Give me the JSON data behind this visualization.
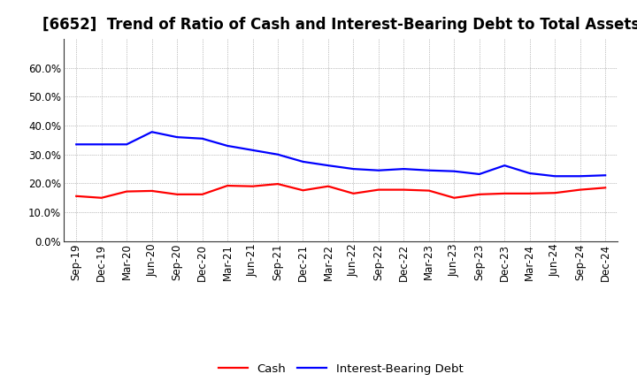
{
  "title": "[6652]  Trend of Ratio of Cash and Interest-Bearing Debt to Total Assets",
  "x_labels": [
    "Sep-19",
    "Dec-19",
    "Mar-20",
    "Jun-20",
    "Sep-20",
    "Dec-20",
    "Mar-21",
    "Jun-21",
    "Sep-21",
    "Dec-21",
    "Mar-22",
    "Jun-22",
    "Sep-22",
    "Dec-22",
    "Mar-23",
    "Jun-23",
    "Sep-23",
    "Dec-23",
    "Mar-24",
    "Jun-24",
    "Sep-24",
    "Dec-24"
  ],
  "cash": [
    0.156,
    0.15,
    0.172,
    0.174,
    0.162,
    0.162,
    0.192,
    0.19,
    0.198,
    0.176,
    0.19,
    0.165,
    0.178,
    0.178,
    0.175,
    0.15,
    0.162,
    0.165,
    0.165,
    0.167,
    0.178,
    0.185
  ],
  "ibd": [
    0.335,
    0.335,
    0.335,
    0.378,
    0.36,
    0.355,
    0.33,
    0.315,
    0.3,
    0.275,
    0.262,
    0.25,
    0.245,
    0.25,
    0.245,
    0.242,
    0.232,
    0.262,
    0.235,
    0.225,
    0.225,
    0.228
  ],
  "cash_color": "#ff0000",
  "ibd_color": "#0000ff",
  "background_color": "#ffffff",
  "grid_color": "#888888",
  "ylim": [
    0.0,
    0.7
  ],
  "yticks": [
    0.0,
    0.1,
    0.2,
    0.3,
    0.4,
    0.5,
    0.6
  ],
  "legend_labels": [
    "Cash",
    "Interest-Bearing Debt"
  ],
  "title_fontsize": 12,
  "tick_fontsize": 8.5
}
